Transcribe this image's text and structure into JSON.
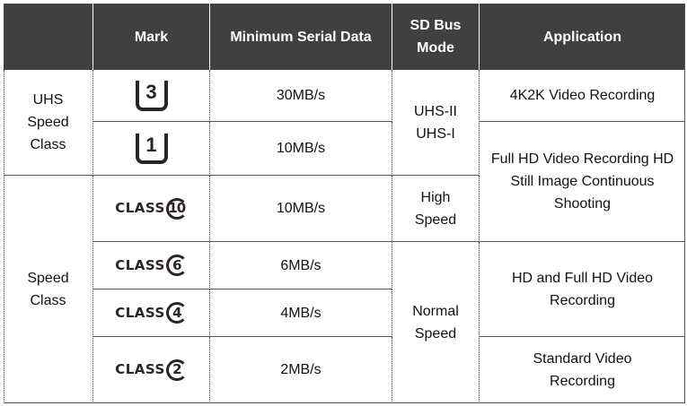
{
  "header": {
    "blank": "",
    "mark": "Mark",
    "min_serial": "Minimum Serial Data",
    "bus_mode": "SD Bus Mode",
    "application": "Application"
  },
  "groups": {
    "uhs": "UHS Speed Class",
    "speed": "Speed Class"
  },
  "rows": [
    {
      "mark": "3",
      "mark_type": "uhs-speed-class-3-logo",
      "speed": "30MB/s"
    },
    {
      "mark": "1",
      "mark_type": "uhs-speed-class-1-logo",
      "speed": "10MB/s"
    },
    {
      "mark": "10",
      "mark_text": "CLASS",
      "mark_type": "class-10-logo",
      "speed": "10MB/s"
    },
    {
      "mark": "6",
      "mark_text": "CLASS",
      "mark_type": "class-6-logo",
      "speed": "6MB/s"
    },
    {
      "mark": "4",
      "mark_text": "CLASS",
      "mark_type": "class-4-logo",
      "speed": "4MB/s"
    },
    {
      "mark": "2",
      "mark_text": "CLASS",
      "mark_type": "class-2-logo",
      "speed": "2MB/s"
    }
  ],
  "bus": {
    "uhs": "UHS-II UHS-I",
    "high": "High Speed",
    "normal": "Normal Speed"
  },
  "apps": [
    "4K2K Video Recording",
    "Full HD Video Recording HD Still Image Continuous Shooting",
    "HD and Full HD Video Recording",
    "Standard Video Recording"
  ],
  "colors": {
    "header_bg": "#404040",
    "header_text": "#ffffff",
    "logo": "#2a2522"
  }
}
